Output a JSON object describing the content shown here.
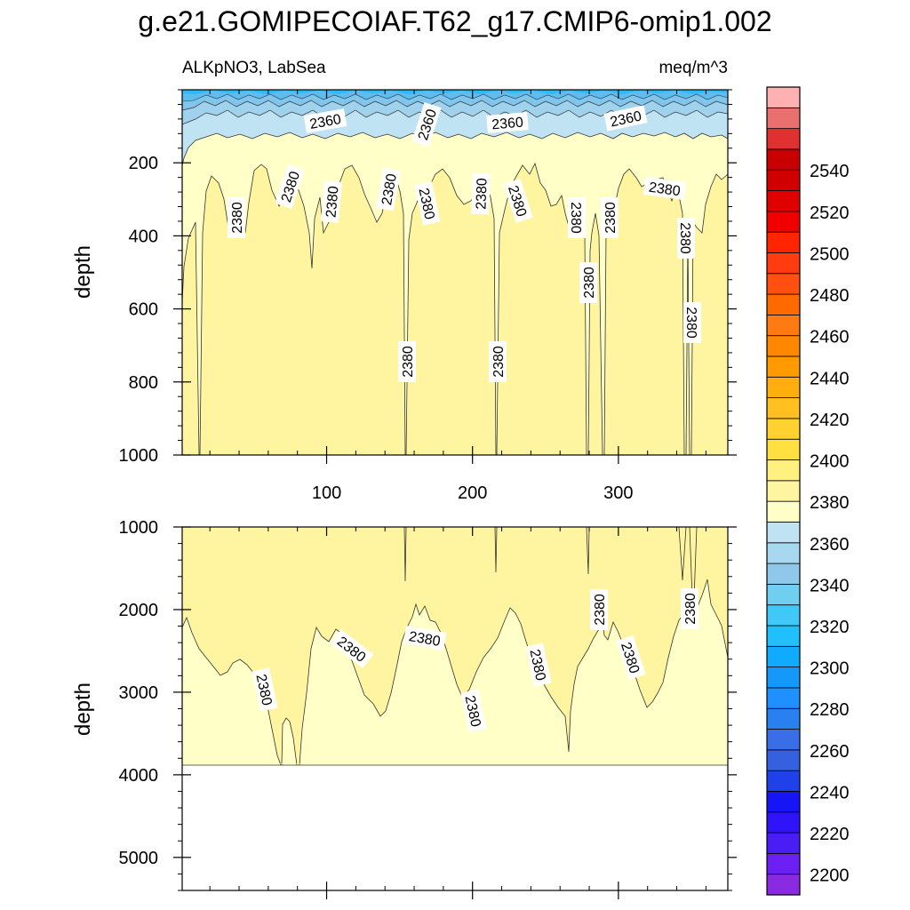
{
  "title": "g.e21.GOMIPECOIAF.T62_g17.CMIP6-omip1.002",
  "chart_data": [
    {
      "type": "contour",
      "panel": "upper",
      "left_label": "ALKpNO3, LabSea",
      "right_label": "meq/m^3",
      "ylabel": "depth",
      "x_range": [
        1,
        375
      ],
      "x_ticks": [
        100,
        200,
        300
      ],
      "y_range": [
        0,
        1000
      ],
      "y_ticks": [
        200,
        400,
        600,
        800,
        1000
      ],
      "contour_labels": [
        "2360",
        "2360",
        "2360",
        "2360",
        "2380",
        "2380",
        "2380",
        "2380",
        "2380",
        "2380",
        "2380",
        "2380",
        "2380",
        "2380",
        "2380",
        "2380",
        "2380",
        "2380",
        "2380",
        "2380"
      ]
    },
    {
      "type": "contour",
      "panel": "lower",
      "ylabel": "depth",
      "x_range": [
        1,
        375
      ],
      "y_range": [
        1000,
        5400
      ],
      "y_ticks": [
        1000,
        2000,
        3000,
        4000,
        5000
      ],
      "data_bottom_depth": 3870,
      "contour_labels": [
        "2380",
        "2380",
        "2380",
        "2380",
        "2380",
        "2380",
        "2380",
        "2380"
      ]
    }
  ],
  "colorbar": {
    "tick_labels": [
      "2200",
      "2220",
      "2240",
      "2260",
      "2280",
      "2300",
      "2320",
      "2340",
      "2360",
      "2380",
      "2400",
      "2420",
      "2440",
      "2460",
      "2480",
      "2500",
      "2520",
      "2540"
    ],
    "colors": [
      "#8a2be2",
      "#6b1ff0",
      "#4b1df5",
      "#2f14fa",
      "#1515f5",
      "#2040ea",
      "#3560e0",
      "#3a6ee6",
      "#2a80ee",
      "#1e90ff",
      "#1599f8",
      "#10aaff",
      "#20c0ff",
      "#40c8f8",
      "#70cff0",
      "#90c8ec",
      "#a8d8f0",
      "#bfe3f2",
      "#ffffc8",
      "#fff5a0",
      "#fff080",
      "#ffe040",
      "#ffd230",
      "#ffc020",
      "#ffae10",
      "#ff9a00",
      "#ff8800",
      "#ff7a10",
      "#ff6a00",
      "#ff5010",
      "#ff3b10",
      "#ff2500",
      "#f00000",
      "#e00000",
      "#d00000",
      "#c80000",
      "#e03030",
      "#ea7070",
      "#ffb0b0"
    ]
  }
}
